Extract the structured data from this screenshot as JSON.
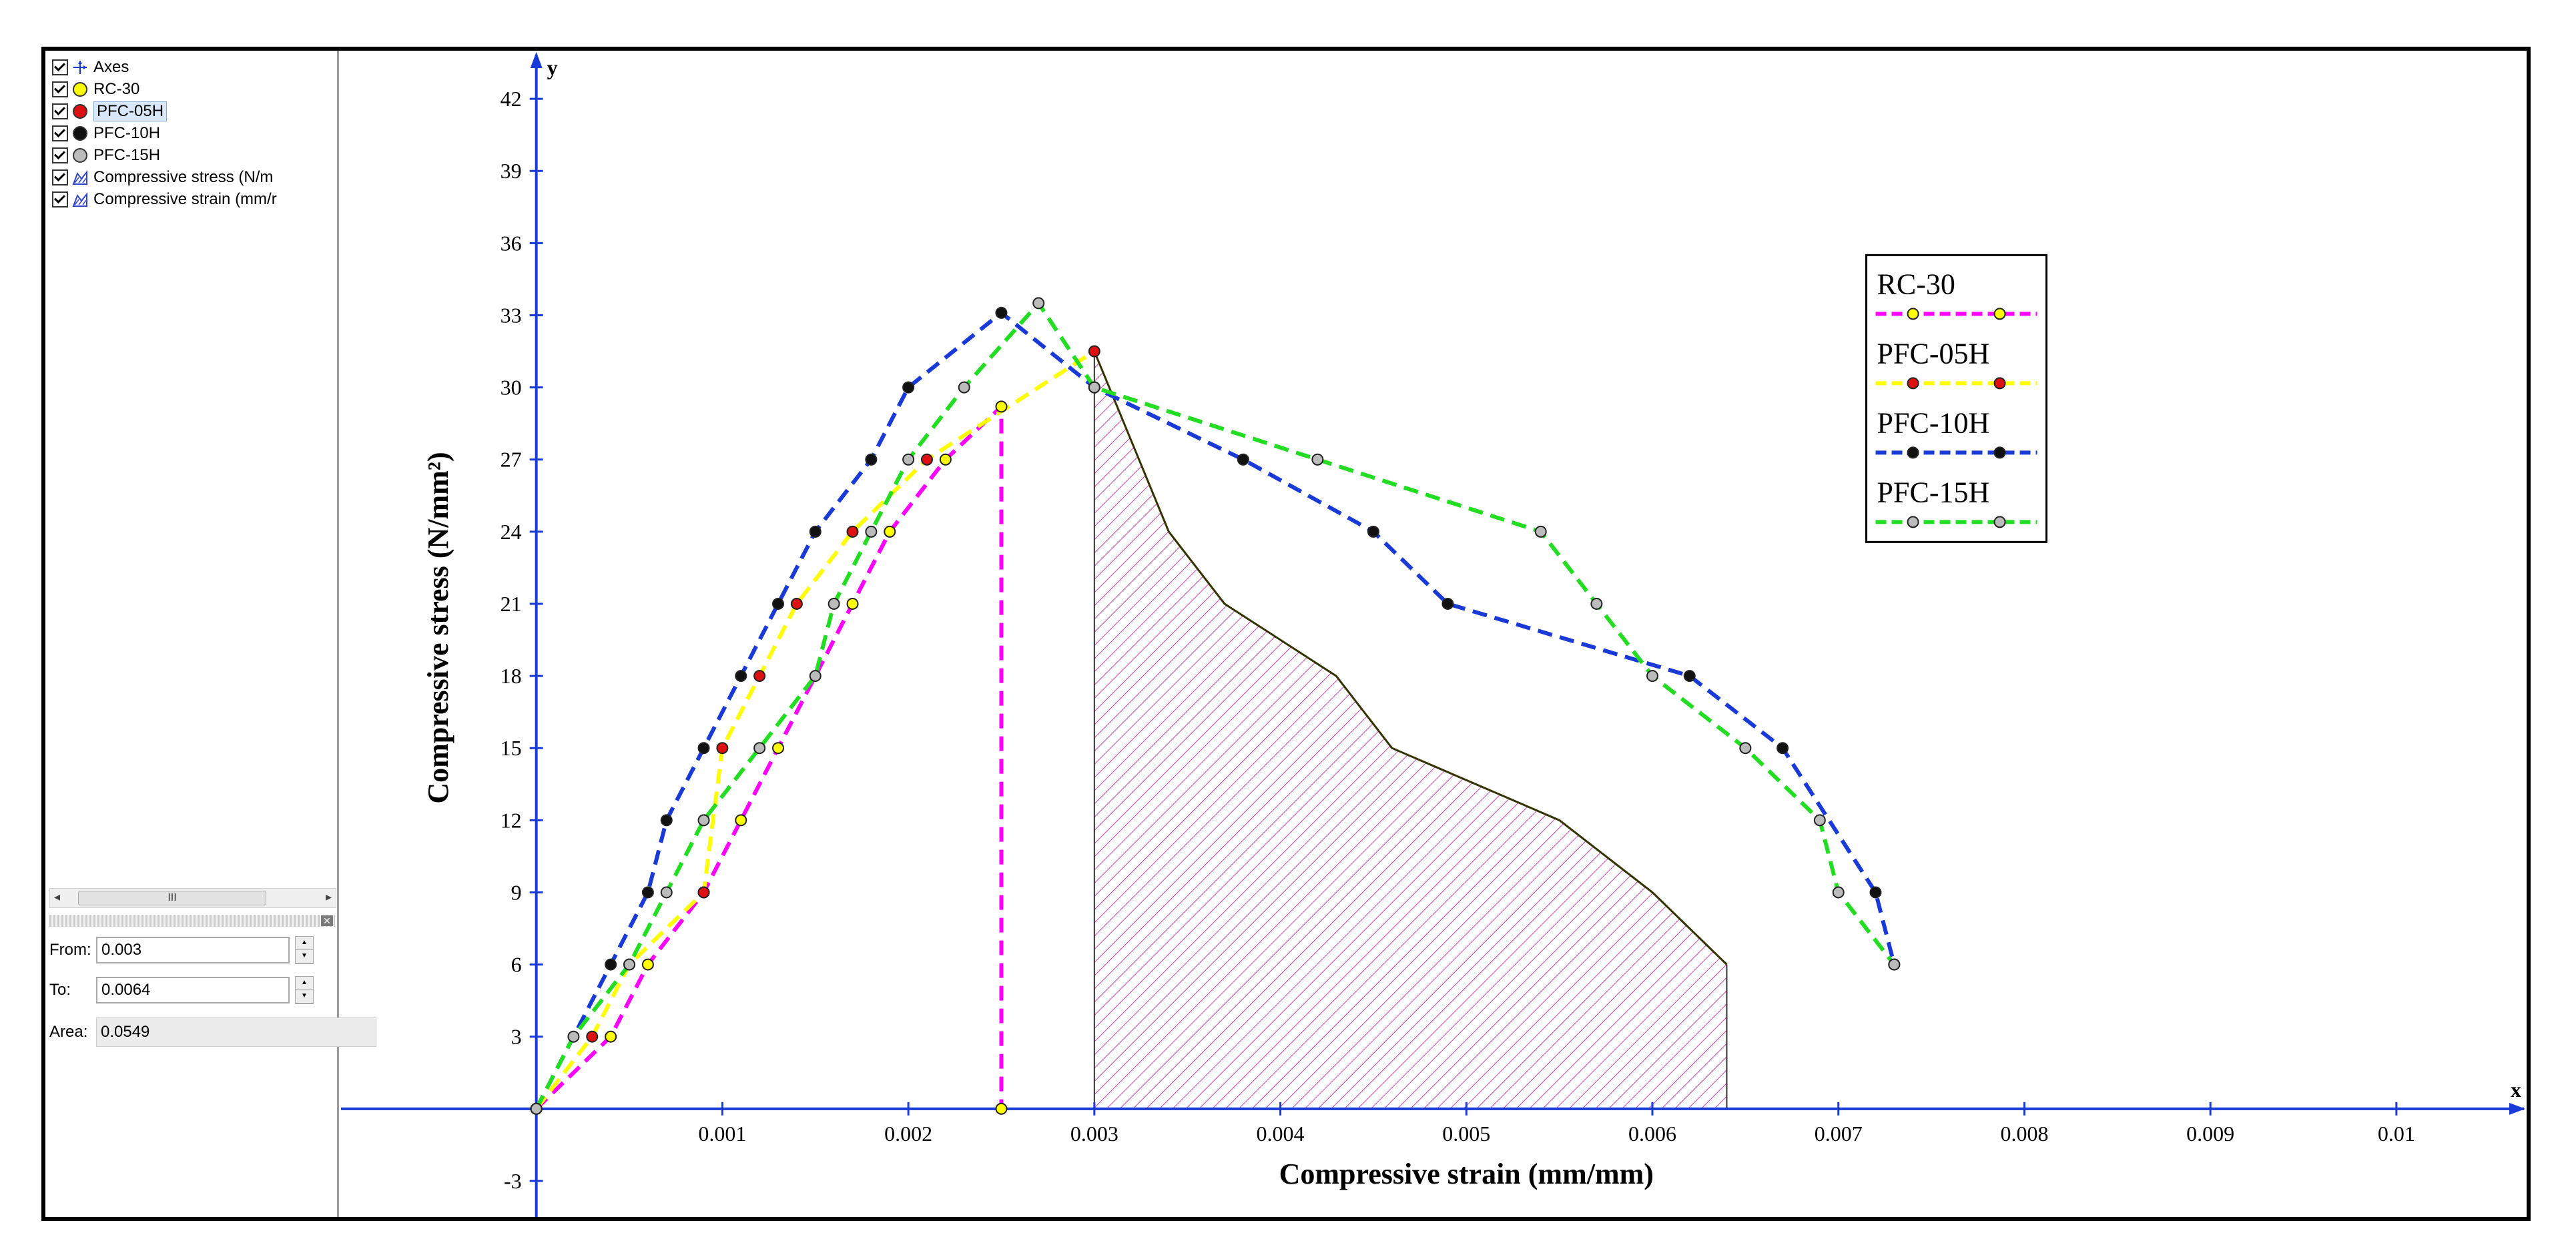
{
  "panel": {
    "items": [
      {
        "label": "Axes",
        "icon": "axes-icon"
      },
      {
        "label": "RC-30",
        "icon": "dot-icon",
        "color": "#ffff00"
      },
      {
        "label": "PFC-05H",
        "icon": "dot-icon",
        "color": "#dd1111"
      },
      {
        "label": "PFC-10H",
        "icon": "dot-icon",
        "color": "#111111"
      },
      {
        "label": "PFC-15H",
        "icon": "dot-icon",
        "color": "#bbbbbb"
      },
      {
        "label": "Compressive stress (N/m",
        "icon": "area-icon"
      },
      {
        "label": "Compressive strain (mm/r",
        "icon": "area-icon"
      }
    ],
    "scroll_thumb": "III",
    "from_label": "From:",
    "from_value": "0.003",
    "to_label": "To:",
    "to_value": "0.0064",
    "area_label": "Area:",
    "area_value": "0.0549"
  },
  "chart_data": {
    "type": "line",
    "xlabel": "Compressive strain (mm/mm)",
    "ylabel": "Compressive stress (N/mm²)",
    "x_axis_name": "x",
    "y_axis_name": "y",
    "xlim": [
      -0.00105,
      0.0107
    ],
    "ylim": [
      -4.5,
      44
    ],
    "x_ticks": [
      0.001,
      0.002,
      0.003,
      0.004,
      0.005,
      0.006,
      0.007,
      0.008,
      0.009,
      0.01
    ],
    "x_tick_labels": [
      "0.001",
      "0.002",
      "0.003",
      "0.004",
      "0.005",
      "0.006",
      "0.007",
      "0.008",
      "0.009",
      "0.01"
    ],
    "y_ticks": [
      -3,
      3,
      6,
      9,
      12,
      15,
      18,
      21,
      24,
      27,
      30,
      33,
      36,
      39,
      42
    ],
    "y_tick_labels": [
      "-3",
      "3",
      "6",
      "9",
      "12",
      "15",
      "18",
      "21",
      "24",
      "27",
      "30",
      "33",
      "36",
      "39",
      "42"
    ],
    "series": [
      {
        "name": "RC-30",
        "line_color": "#ff00ff",
        "marker_color": "#ffff00",
        "points": [
          [
            0,
            0
          ],
          [
            0.0004,
            3
          ],
          [
            0.0006,
            6
          ],
          [
            0.0009,
            9
          ],
          [
            0.0011,
            12
          ],
          [
            0.0013,
            15
          ],
          [
            0.0017,
            21
          ],
          [
            0.0019,
            24
          ],
          [
            0.0022,
            27
          ],
          [
            0.0025,
            29.2
          ],
          [
            0.0025,
            0
          ]
        ]
      },
      {
        "name": "PFC-05H",
        "line_color": "#ffff00",
        "marker_color": "#dd1111",
        "points": [
          [
            0,
            0
          ],
          [
            0.0003,
            3
          ],
          [
            0.0005,
            6
          ],
          [
            0.0009,
            9
          ],
          [
            0.001,
            15
          ],
          [
            0.0012,
            18
          ],
          [
            0.0014,
            21
          ],
          [
            0.0017,
            24
          ],
          [
            0.0021,
            27
          ],
          [
            0.003,
            31.5
          ]
        ]
      },
      {
        "name": "PFC-10H",
        "line_color": "#1a3ad8",
        "marker_color": "#111111",
        "points": [
          [
            0,
            0
          ],
          [
            0.0004,
            6
          ],
          [
            0.0006,
            9
          ],
          [
            0.0007,
            12
          ],
          [
            0.0009,
            15
          ],
          [
            0.0011,
            18
          ],
          [
            0.0013,
            21
          ],
          [
            0.0015,
            24
          ],
          [
            0.0018,
            27
          ],
          [
            0.002,
            30
          ],
          [
            0.0025,
            33.1
          ],
          [
            0.003,
            30
          ],
          [
            0.0038,
            27
          ],
          [
            0.0045,
            24
          ],
          [
            0.0049,
            21
          ],
          [
            0.0062,
            18
          ],
          [
            0.0067,
            15
          ],
          [
            0.0072,
            9
          ],
          [
            0.0073,
            6
          ]
        ]
      },
      {
        "name": "PFC-15H",
        "line_color": "#22dd22",
        "marker_color": "#bbbbbb",
        "points": [
          [
            0,
            0
          ],
          [
            0.0002,
            3
          ],
          [
            0.0005,
            6
          ],
          [
            0.0007,
            9
          ],
          [
            0.0009,
            12
          ],
          [
            0.0012,
            15
          ],
          [
            0.0015,
            18
          ],
          [
            0.0016,
            21
          ],
          [
            0.0018,
            24
          ],
          [
            0.002,
            27
          ],
          [
            0.0023,
            30
          ],
          [
            0.0027,
            33.5
          ],
          [
            0.003,
            30
          ],
          [
            0.0042,
            27
          ],
          [
            0.0054,
            24
          ],
          [
            0.0057,
            21
          ],
          [
            0.006,
            18
          ],
          [
            0.0065,
            15
          ],
          [
            0.0069,
            12
          ],
          [
            0.007,
            9
          ],
          [
            0.0073,
            6
          ]
        ]
      }
    ],
    "area_region": {
      "from": 0.003,
      "to": 0.0064,
      "edge_color": "#333300",
      "hatch_color": "#cc44aa",
      "points": [
        [
          0.003,
          31.5
        ],
        [
          0.0034,
          24
        ],
        [
          0.0037,
          21
        ],
        [
          0.0043,
          18
        ],
        [
          0.0046,
          15
        ],
        [
          0.0055,
          12
        ],
        [
          0.006,
          9
        ],
        [
          0.0064,
          6
        ]
      ]
    },
    "legend": {
      "position": "upper-right",
      "entries": [
        "RC-30",
        "PFC-05H",
        "PFC-10H",
        "PFC-15H"
      ]
    }
  }
}
